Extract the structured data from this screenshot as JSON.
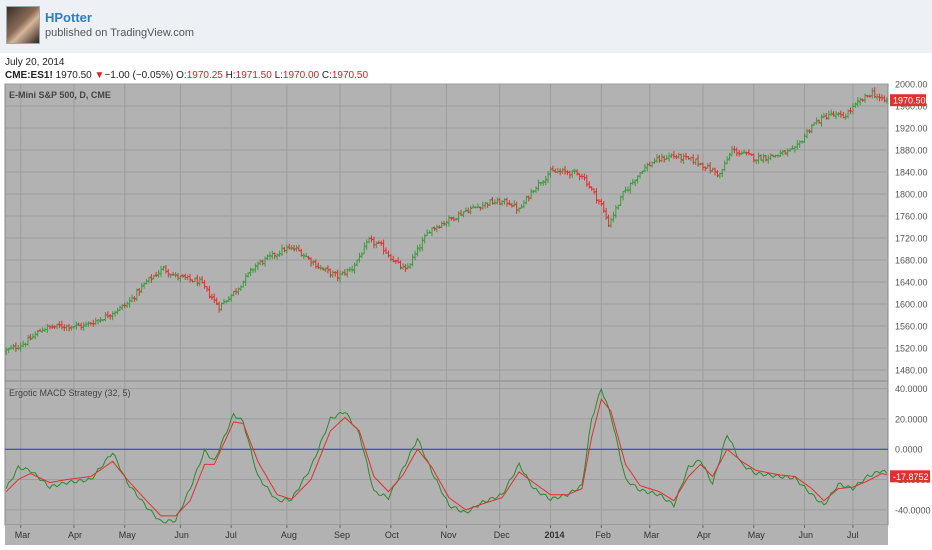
{
  "header": {
    "author": "HPotter",
    "published": "published on TradingView.com"
  },
  "info": {
    "date": "July 20, 2014",
    "symbol": "CME:ES1!",
    "last": "1970.50",
    "change": "−1.00 (−0.05%)",
    "o_label": "O:",
    "o": "1970.25",
    "h_label": "H:",
    "h": "1971.50",
    "l_label": "L:",
    "l": "1970.00",
    "c_label": "C:",
    "c": "1970.50"
  },
  "colors": {
    "chart_bg": "#b2b2b2",
    "up_bar": "#3e9a3e",
    "down_bar": "#e0302f",
    "ergotic_line": "#2c8a2c",
    "signal_line": "#e0302f",
    "zero_line": "#2a2ad6",
    "price_tag": "#e0302f"
  },
  "chart_data": [
    {
      "type": "bar",
      "title": "E-Mini S&P 500, D, CME",
      "ylim": [
        1460,
        2000
      ],
      "y_ticks": [
        "2000.00",
        "1960.00",
        "1920.00",
        "1880.00",
        "1840.00",
        "1800.00",
        "1760.00",
        "1720.00",
        "1680.00",
        "1640.00",
        "1600.00",
        "1560.00",
        "1520.00",
        "1480.00"
      ],
      "last_price_tag": "1970.50",
      "x_ticks": [
        "Mar",
        "Apr",
        "May",
        "Jun",
        "Jul",
        "Aug",
        "Sep",
        "Oct",
        "Nov",
        "Dec",
        "2014",
        "Feb",
        "Mar",
        "Apr",
        "May",
        "Jun",
        "Jul"
      ],
      "x_tick_bar_index": [
        6,
        28,
        49,
        72,
        93,
        116,
        138,
        159,
        182,
        204,
        225,
        246,
        266,
        288,
        309,
        330,
        350
      ],
      "bars_count": 365,
      "close_anchors": [
        [
          0,
          1515
        ],
        [
          3,
          1520
        ],
        [
          8,
          1530
        ],
        [
          15,
          1555
        ],
        [
          22,
          1560
        ],
        [
          32,
          1560
        ],
        [
          40,
          1575
        ],
        [
          50,
          1600
        ],
        [
          58,
          1640
        ],
        [
          65,
          1665
        ],
        [
          70,
          1650
        ],
        [
          80,
          1640
        ],
        [
          88,
          1595
        ],
        [
          95,
          1625
        ],
        [
          103,
          1670
        ],
        [
          115,
          1700
        ],
        [
          120,
          1700
        ],
        [
          130,
          1665
        ],
        [
          137,
          1650
        ],
        [
          143,
          1665
        ],
        [
          150,
          1715
        ],
        [
          155,
          1705
        ],
        [
          160,
          1680
        ],
        [
          165,
          1660
        ],
        [
          175,
          1735
        ],
        [
          184,
          1755
        ],
        [
          190,
          1770
        ],
        [
          200,
          1785
        ],
        [
          208,
          1785
        ],
        [
          212,
          1770
        ],
        [
          218,
          1810
        ],
        [
          225,
          1840
        ],
        [
          232,
          1840
        ],
        [
          238,
          1835
        ],
        [
          246,
          1780
        ],
        [
          249,
          1745
        ],
        [
          255,
          1800
        ],
        [
          263,
          1845
        ],
        [
          268,
          1860
        ],
        [
          275,
          1870
        ],
        [
          285,
          1860
        ],
        [
          295,
          1835
        ],
        [
          300,
          1880
        ],
        [
          310,
          1865
        ],
        [
          318,
          1870
        ],
        [
          326,
          1880
        ],
        [
          333,
          1925
        ],
        [
          340,
          1945
        ],
        [
          346,
          1940
        ],
        [
          352,
          1965
        ],
        [
          358,
          1985
        ],
        [
          362,
          1970
        ],
        [
          364,
          1970
        ]
      ]
    },
    {
      "type": "line",
      "title": "Ergotic MACD Strategy (32, 5)",
      "ylim": [
        -50,
        45
      ],
      "y_ticks": [
        "40.0000",
        "20.0000",
        "0.0000",
        "-20.0000",
        "-40.0000"
      ],
      "last_value_tag": "-17.8752",
      "series": [
        {
          "anchors": [
            [
              0,
              -26
            ],
            [
              5,
              -12
            ],
            [
              10,
              -14
            ],
            [
              18,
              -25
            ],
            [
              25,
              -22
            ],
            [
              35,
              -20
            ],
            [
              44,
              -2
            ],
            [
              50,
              -22
            ],
            [
              58,
              -38
            ],
            [
              64,
              -48
            ],
            [
              70,
              -47
            ],
            [
              76,
              -26
            ],
            [
              82,
              -1
            ],
            [
              86,
              -8
            ],
            [
              94,
              23
            ],
            [
              98,
              18
            ],
            [
              104,
              -18
            ],
            [
              112,
              -34
            ],
            [
              118,
              -33
            ],
            [
              126,
              -12
            ],
            [
              134,
              20
            ],
            [
              140,
              25
            ],
            [
              146,
              10
            ],
            [
              152,
              -28
            ],
            [
              158,
              -32
            ],
            [
              164,
              -13
            ],
            [
              170,
              7
            ],
            [
              176,
              -15
            ],
            [
              183,
              -37
            ],
            [
              190,
              -42
            ],
            [
              197,
              -35
            ],
            [
              205,
              -30
            ],
            [
              212,
              -10
            ],
            [
              218,
              -26
            ],
            [
              225,
              -33
            ],
            [
              232,
              -30
            ],
            [
              238,
              -24
            ],
            [
              242,
              20
            ],
            [
              246,
              40
            ],
            [
              250,
              22
            ],
            [
              256,
              -20
            ],
            [
              262,
              -27
            ],
            [
              270,
              -30
            ],
            [
              276,
              -37
            ],
            [
              282,
              -12
            ],
            [
              287,
              -7
            ],
            [
              292,
              -23
            ],
            [
              298,
              10
            ],
            [
              304,
              -10
            ],
            [
              310,
              -16
            ],
            [
              320,
              -18
            ],
            [
              326,
              -19
            ],
            [
              333,
              -30
            ],
            [
              338,
              -37
            ],
            [
              344,
              -23
            ],
            [
              350,
              -26
            ],
            [
              356,
              -18
            ],
            [
              362,
              -14
            ],
            [
              364,
              -16
            ]
          ]
        },
        {
          "anchors": [
            [
              0,
              -28
            ],
            [
              5,
              -20
            ],
            [
              10,
              -16
            ],
            [
              18,
              -22
            ],
            [
              25,
              -20
            ],
            [
              35,
              -18
            ],
            [
              44,
              -8
            ],
            [
              50,
              -20
            ],
            [
              58,
              -34
            ],
            [
              64,
              -44
            ],
            [
              70,
              -44
            ],
            [
              76,
              -34
            ],
            [
              82,
              -10
            ],
            [
              86,
              -10
            ],
            [
              94,
              18
            ],
            [
              98,
              17
            ],
            [
              104,
              -8
            ],
            [
              112,
              -30
            ],
            [
              118,
              -33
            ],
            [
              126,
              -20
            ],
            [
              134,
              12
            ],
            [
              140,
              21
            ],
            [
              146,
              12
            ],
            [
              152,
              -18
            ],
            [
              158,
              -28
            ],
            [
              164,
              -17
            ],
            [
              170,
              0
            ],
            [
              176,
              -12
            ],
            [
              183,
              -32
            ],
            [
              190,
              -40
            ],
            [
              197,
              -36
            ],
            [
              205,
              -32
            ],
            [
              212,
              -15
            ],
            [
              218,
              -22
            ],
            [
              225,
              -30
            ],
            [
              232,
              -30
            ],
            [
              238,
              -26
            ],
            [
              242,
              8
            ],
            [
              246,
              33
            ],
            [
              250,
              25
            ],
            [
              256,
              -10
            ],
            [
              262,
              -24
            ],
            [
              270,
              -28
            ],
            [
              276,
              -34
            ],
            [
              282,
              -18
            ],
            [
              287,
              -10
            ],
            [
              292,
              -18
            ],
            [
              298,
              0
            ],
            [
              304,
              -8
            ],
            [
              310,
              -14
            ],
            [
              320,
              -17
            ],
            [
              326,
              -18
            ],
            [
              333,
              -26
            ],
            [
              338,
              -34
            ],
            [
              344,
              -26
            ],
            [
              350,
              -25
            ],
            [
              356,
              -21
            ],
            [
              362,
              -16
            ],
            [
              364,
              -17
            ]
          ]
        }
      ]
    }
  ]
}
